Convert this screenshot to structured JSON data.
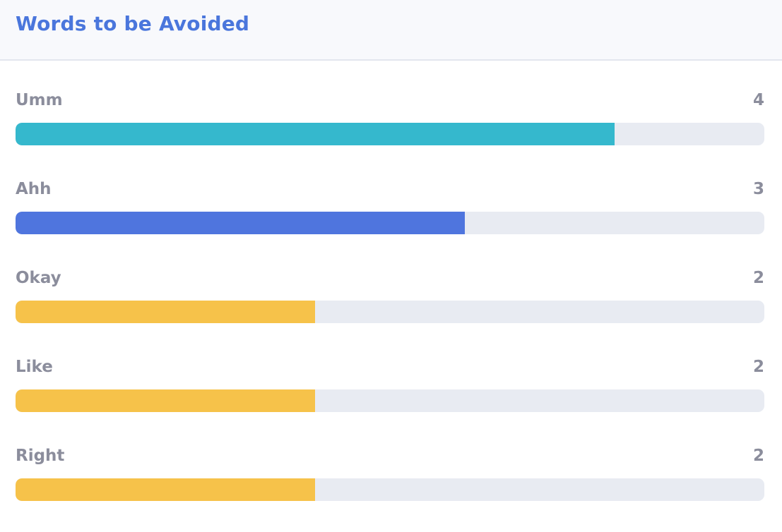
{
  "header": {
    "title": "Words to be Avoided"
  },
  "colors": {
    "title": "#4a76dc",
    "track": "#e8ebf2",
    "teal": "#35b8cd",
    "blue": "#4f75de",
    "yellow": "#f6c24a"
  },
  "scale_max": 5,
  "words": [
    {
      "label": "Umm",
      "count": "4",
      "value": 4,
      "color": "#35b8cd"
    },
    {
      "label": "Ahh",
      "count": "3",
      "value": 3,
      "color": "#4f75de"
    },
    {
      "label": "Okay",
      "count": "2",
      "value": 2,
      "color": "#f6c24a"
    },
    {
      "label": "Like",
      "count": "2",
      "value": 2,
      "color": "#f6c24a"
    },
    {
      "label": "Right",
      "count": "2",
      "value": 2,
      "color": "#f6c24a"
    }
  ]
}
